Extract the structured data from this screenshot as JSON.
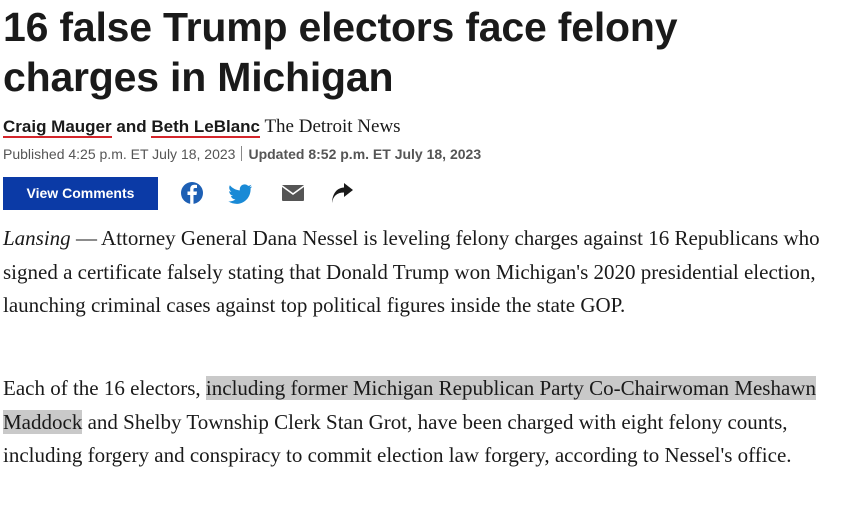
{
  "headline": "16 false Trump electors face felony charges in Michigan",
  "byline": {
    "authors": [
      "Craig Mauger",
      "Beth LeBlanc"
    ],
    "conjunction": "and",
    "outlet": "The Detroit News"
  },
  "dates": {
    "published": "Published 4:25 p.m. ET July 18, 2023",
    "updated": "Updated 8:52 p.m. ET July 18, 2023"
  },
  "comments_button": "View Comments",
  "paragraphs": [
    {
      "dateline": "Lansing",
      "text": " — Attorney General Dana Nessel is leveling felony charges against 16 Republicans who signed a certificate falsely stating that Donald Trump won Michigan's 2020 presidential election, launching criminal cases against top political figures inside the state GOP."
    },
    {
      "before": "Each of the 16 electors, ",
      "highlighted": "including former Michigan Republican Party Co-Chairwoman Meshawn Maddock",
      "after": " and Shelby Township Clerk Stan Grot, have been charged with eight felony counts, including forgery and conspiracy to commit election law forgery, according to Nessel's office."
    }
  ]
}
